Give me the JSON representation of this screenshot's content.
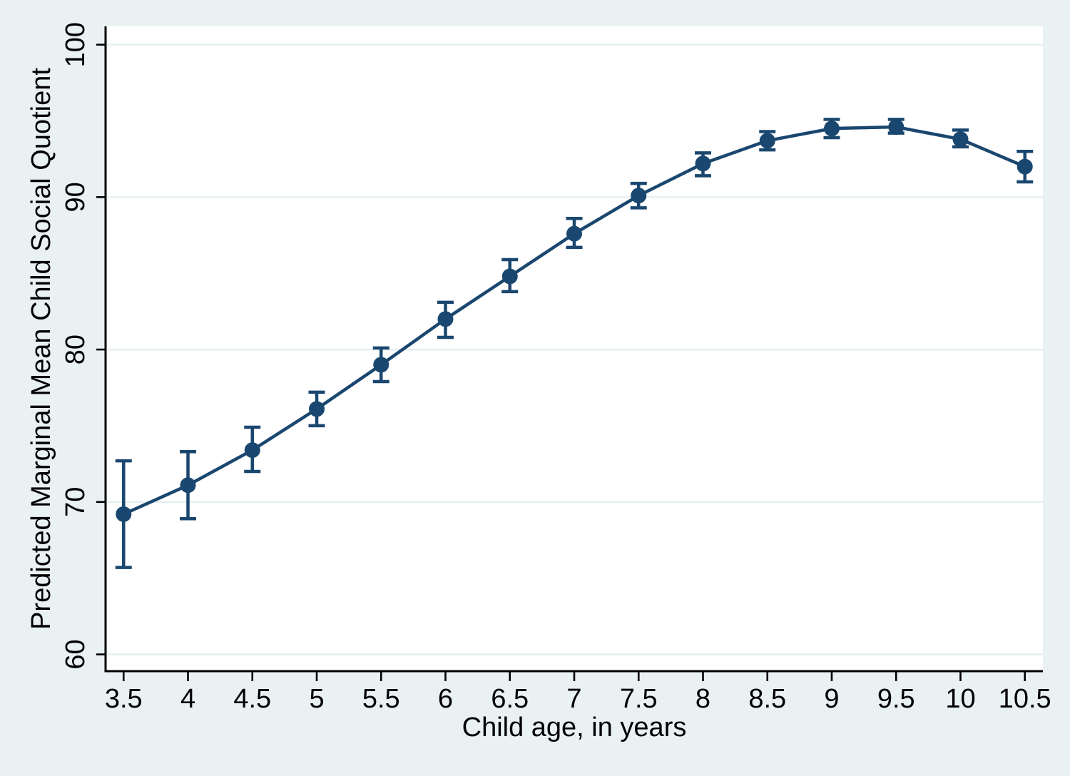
{
  "chart_data": {
    "type": "line",
    "title": "",
    "xlabel": "Child age, in years",
    "ylabel": "Predicted Marginal Mean Child Social Quotient",
    "x": [
      3.5,
      4,
      4.5,
      5,
      5.5,
      6,
      6.5,
      7,
      7.5,
      8,
      8.5,
      9,
      9.5,
      10,
      10.5
    ],
    "series": [
      {
        "name": "Predicted marginal mean child social quotient",
        "values": [
          69.2,
          71.1,
          73.4,
          76.1,
          79.0,
          82.0,
          84.8,
          87.6,
          90.1,
          92.2,
          93.7,
          94.5,
          94.6,
          93.8,
          92.0
        ],
        "ci_low": [
          65.7,
          68.9,
          72.0,
          75.0,
          77.9,
          80.8,
          83.8,
          86.7,
          89.3,
          91.4,
          93.1,
          93.9,
          94.2,
          93.3,
          91.0
        ],
        "ci_high": [
          72.7,
          73.3,
          74.9,
          77.2,
          80.1,
          83.1,
          85.9,
          88.6,
          90.9,
          92.9,
          94.3,
          95.1,
          95.1,
          94.4,
          93.0
        ]
      }
    ],
    "error_bars": true,
    "xtick_values": [
      3.5,
      4,
      4.5,
      5,
      5.5,
      6,
      6.5,
      7,
      7.5,
      8,
      8.5,
      9,
      9.5,
      10,
      10.5
    ],
    "xtick_labels": [
      "3.5",
      "4",
      "4.5",
      "5",
      "5.5",
      "6",
      "6.5",
      "7",
      "7.5",
      "8",
      "8.5",
      "9",
      "9.5",
      "10",
      "10.5"
    ],
    "ytick_values": [
      60,
      70,
      80,
      90,
      100
    ],
    "ytick_labels": [
      "60",
      "70",
      "80",
      "90",
      "100"
    ],
    "xlim": [
      3.36,
      10.64
    ],
    "ylim": [
      58.9,
      101.2
    ],
    "grid": true,
    "legend": "none",
    "colors": {
      "series": "#1a476f",
      "background": "#e9f1f3",
      "plot_background": "#ffffff",
      "grid": "#e6eff2",
      "axis": "#000000",
      "text": "#000000"
    }
  }
}
